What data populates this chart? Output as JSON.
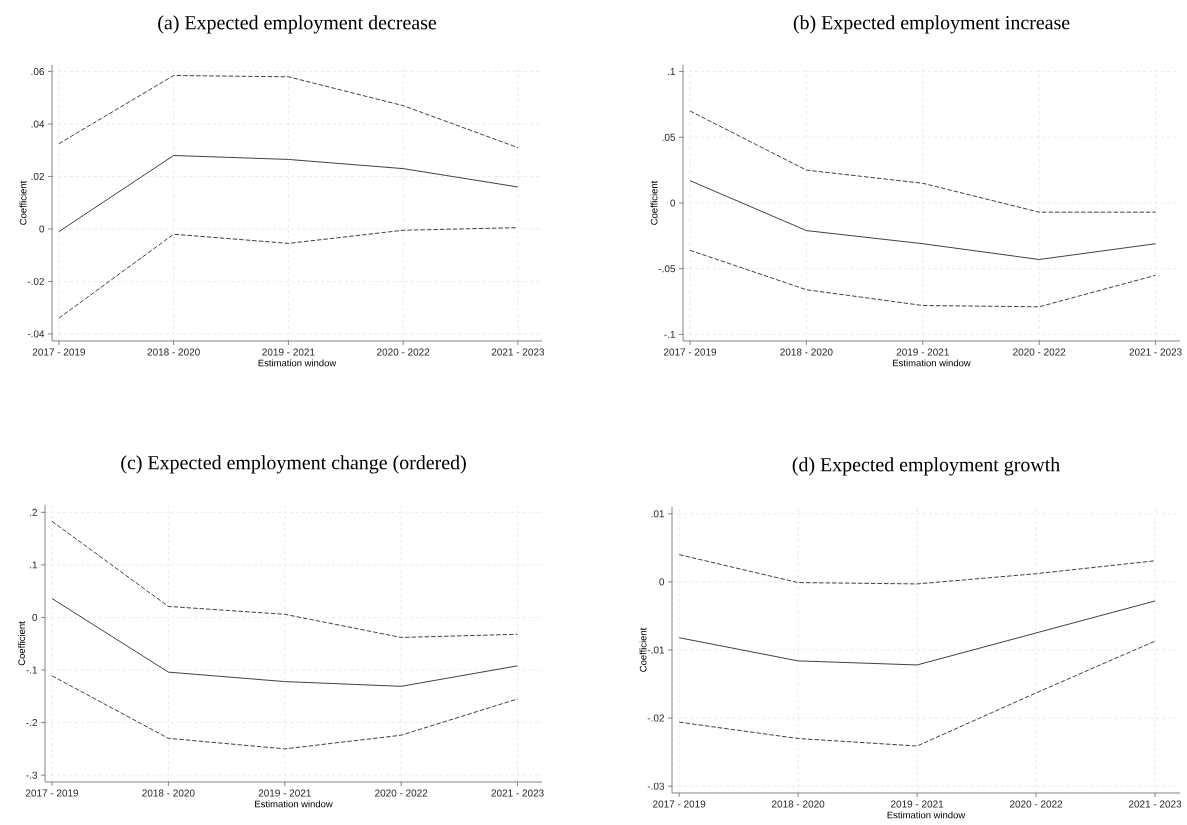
{
  "chart_data": [
    {
      "type": "line",
      "title": "(a) Expected employment decrease",
      "xlabel": "Estimation window",
      "ylabel": "Coefficient",
      "categories": [
        "2017 - 2019",
        "2018 - 2020",
        "2019 - 2021",
        "2020 - 2022",
        "2021 - 2023"
      ],
      "grid": true,
      "ylim": [
        -0.0427,
        0.0625
      ],
      "yticks": [
        {
          "value": -0.04,
          "label": "-.04"
        },
        {
          "value": -0.02,
          "label": "-.02"
        },
        0,
        {
          "value": 0.02,
          "label": ".02"
        },
        {
          "value": 0.04,
          "label": ".04"
        },
        {
          "value": 0.06,
          "label": ".06"
        }
      ],
      "series": [
        {
          "color": "#404040",
          "line_style": "dashed",
          "values": [
            0.0325,
            0.0585,
            0.058,
            0.047,
            0.031
          ]
        },
        {
          "color": "#404040",
          "line_style": "solid",
          "values": [
            -0.001,
            0.028,
            0.0265,
            0.023,
            0.016
          ]
        },
        {
          "color": "#404040",
          "line_style": "dashed",
          "values": [
            -0.034,
            -0.002,
            -0.0055,
            -0.0005,
            0.0005
          ]
        }
      ]
    },
    {
      "type": "line",
      "title": "(b) Expected employment increase",
      "xlabel": "Estimation window",
      "ylabel": "Coefficient",
      "categories": [
        "2017 - 2019",
        "2018 - 2020",
        "2019 - 2021",
        "2020 - 2022",
        "2021 - 2023"
      ],
      "grid": true,
      "ylim": [
        -0.105,
        0.105
      ],
      "yticks": [
        {
          "value": -0.1,
          "label": "-.1"
        },
        {
          "value": -0.05,
          "label": "-.05"
        },
        0,
        {
          "value": 0.05,
          "label": ".05"
        },
        {
          "value": 0.1,
          "label": ".1"
        }
      ],
      "series": [
        {
          "color": "#404040",
          "line_style": "dashed",
          "values": [
            0.07,
            0.025,
            0.015,
            -0.007,
            -0.007
          ]
        },
        {
          "color": "#404040",
          "line_style": "solid",
          "values": [
            0.017,
            -0.021,
            -0.031,
            -0.043,
            -0.031
          ]
        },
        {
          "color": "#404040",
          "line_style": "dashed",
          "values": [
            -0.036,
            -0.066,
            -0.078,
            -0.079,
            -0.055
          ]
        }
      ]
    },
    {
      "type": "line",
      "title": "(c) Expected employment change (ordered)",
      "xlabel": "Estimation window",
      "ylabel": "Coefficient",
      "categories": [
        "2017 - 2019",
        "2018 - 2020",
        "2019 - 2021",
        "2020 - 2022",
        "2021 - 2023"
      ],
      "grid": true,
      "ylim": [
        -0.313,
        0.214
      ],
      "yticks": [
        {
          "value": -0.3,
          "label": "-.3"
        },
        {
          "value": -0.2,
          "label": "-.2"
        },
        {
          "value": -0.1,
          "label": "-.1"
        },
        0,
        {
          "value": 0.1,
          "label": ".1"
        },
        {
          "value": 0.2,
          "label": ".2"
        }
      ],
      "series": [
        {
          "color": "#404040",
          "line_style": "dashed",
          "values": [
            0.183,
            0.021,
            0.006,
            -0.038,
            -0.032
          ]
        },
        {
          "color": "#404040",
          "line_style": "solid",
          "values": [
            0.036,
            -0.104,
            -0.122,
            -0.131,
            -0.092
          ]
        },
        {
          "color": "#404040",
          "line_style": "dashed",
          "values": [
            -0.111,
            -0.23,
            -0.25,
            -0.224,
            -0.155
          ]
        }
      ]
    },
    {
      "type": "line",
      "title": "(d) Expected employment growth",
      "xlabel": "Estimation window",
      "ylabel": "Coefficient",
      "categories": [
        "2017 - 2019",
        "2018 - 2020",
        "2019 - 2021",
        "2020 - 2022",
        "2021 - 2023"
      ],
      "grid": true,
      "ylim": [
        -0.031,
        0.011
      ],
      "yticks": [
        {
          "value": -0.03,
          "label": "-.03"
        },
        {
          "value": -0.02,
          "label": "-.02"
        },
        {
          "value": -0.01,
          "label": "-.01"
        },
        0,
        {
          "value": 0.01,
          "label": ".01"
        }
      ],
      "series": [
        {
          "color": "#404040",
          "line_style": "dashed",
          "values": [
            0.004,
            -0.0001,
            -0.0003,
            0.0012,
            0.0031
          ]
        },
        {
          "color": "#404040",
          "line_style": "solid",
          "values": [
            -0.0082,
            -0.0116,
            -0.0122,
            -0.0075,
            -0.0028
          ]
        },
        {
          "color": "#404040",
          "line_style": "dashed",
          "values": [
            -0.0206,
            -0.023,
            -0.0241,
            -0.0163,
            -0.0087
          ]
        }
      ]
    }
  ]
}
